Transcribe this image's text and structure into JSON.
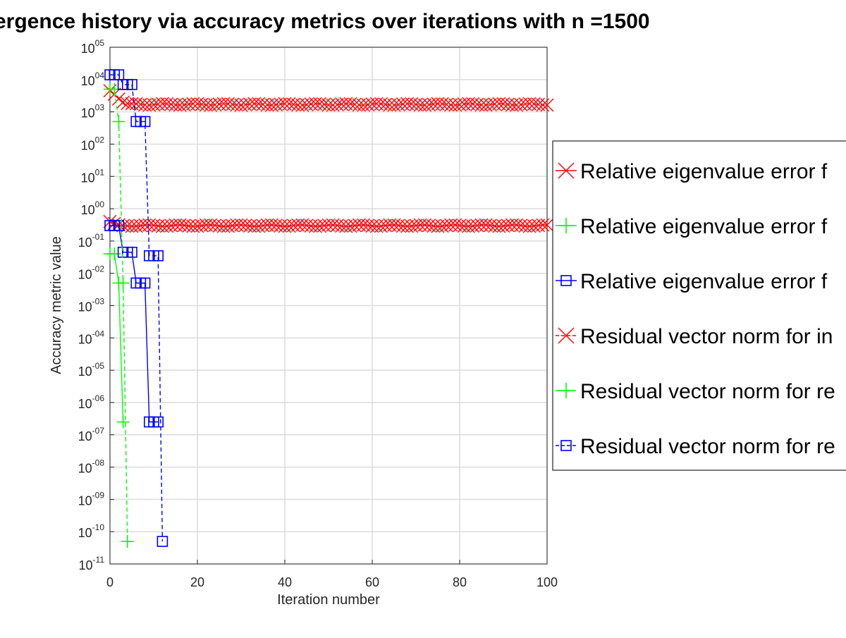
{
  "chart_data": {
    "type": "line",
    "title": "ergence history via accuracy metrics over iterations with n =1500",
    "xlabel": "Iteration number",
    "ylabel": "Accuracy metric value",
    "xlim": [
      0,
      100
    ],
    "ylim_exponents": [
      -11,
      5
    ],
    "yscale": "log",
    "grid": true,
    "legend_placement": "right, partially cut off",
    "x_ticks": [
      "0",
      "20",
      "40",
      "60",
      "80",
      "100"
    ],
    "y_tick_base": "10",
    "y_tick_exponents": [
      "-11",
      "-10",
      "-09",
      "-08",
      "-07",
      "-06",
      "-05",
      "-04",
      "-03",
      "-02",
      "-01",
      "00",
      "01",
      "02",
      "03",
      "04",
      "05"
    ],
    "series": [
      {
        "name": "Relative eigenvalue error f",
        "color": "#ff0000",
        "marker": "x",
        "line": "solid",
        "x_range": [
          0,
          100
        ],
        "dense": true,
        "points": [
          [
            0,
            0.4
          ],
          [
            1,
            0.35
          ],
          [
            2,
            0.32
          ],
          [
            3,
            0.3
          ]
        ],
        "plateau": 0.3
      },
      {
        "name": "Relative eigenvalue error f",
        "color": "#00ff00",
        "marker": "+",
        "line": "solid",
        "points": [
          [
            0,
            0.04
          ],
          [
            1,
            0.04
          ],
          [
            2,
            0.005
          ],
          [
            3,
            2.5e-07
          ]
        ]
      },
      {
        "name": "Relative eigenvalue error f",
        "color": "#0000ff",
        "marker": "square",
        "line": "solid",
        "points": [
          [
            0,
            0.3
          ],
          [
            1,
            0.3
          ],
          [
            2,
            0.3
          ],
          [
            3,
            0.045
          ],
          [
            4,
            0.045
          ],
          [
            5,
            0.045
          ],
          [
            6,
            0.005
          ],
          [
            7,
            0.005
          ],
          [
            8,
            0.005
          ],
          [
            9,
            2.5e-07
          ],
          [
            10,
            2.5e-07
          ],
          [
            11,
            2.5e-07
          ]
        ]
      },
      {
        "name": "Residual vector norm for in",
        "color": "#ff0000",
        "marker": "x",
        "line": "dashed",
        "x_range": [
          0,
          100
        ],
        "dense": true,
        "points": [
          [
            0,
            4500
          ],
          [
            1,
            3500
          ],
          [
            2,
            2500
          ],
          [
            3,
            2000
          ],
          [
            4,
            1800
          ]
        ],
        "plateau": 1700
      },
      {
        "name": "Residual vector norm for re",
        "color": "#00ff00",
        "marker": "+",
        "line": "dashed",
        "points": [
          [
            0,
            5000
          ],
          [
            1,
            5000
          ],
          [
            2,
            500
          ],
          [
            3,
            0.005
          ],
          [
            4,
            5e-11
          ]
        ]
      },
      {
        "name": "Residual vector norm for re",
        "color": "#0000ff",
        "marker": "square",
        "line": "dashed",
        "points": [
          [
            0,
            14000
          ],
          [
            1,
            14000
          ],
          [
            2,
            14000
          ],
          [
            3,
            7000
          ],
          [
            4,
            7000
          ],
          [
            5,
            7000
          ],
          [
            6,
            500
          ],
          [
            7,
            500
          ],
          [
            8,
            500
          ],
          [
            9,
            0.035
          ],
          [
            10,
            0.035
          ],
          [
            11,
            0.035
          ],
          [
            12,
            5e-11
          ]
        ]
      }
    ]
  }
}
